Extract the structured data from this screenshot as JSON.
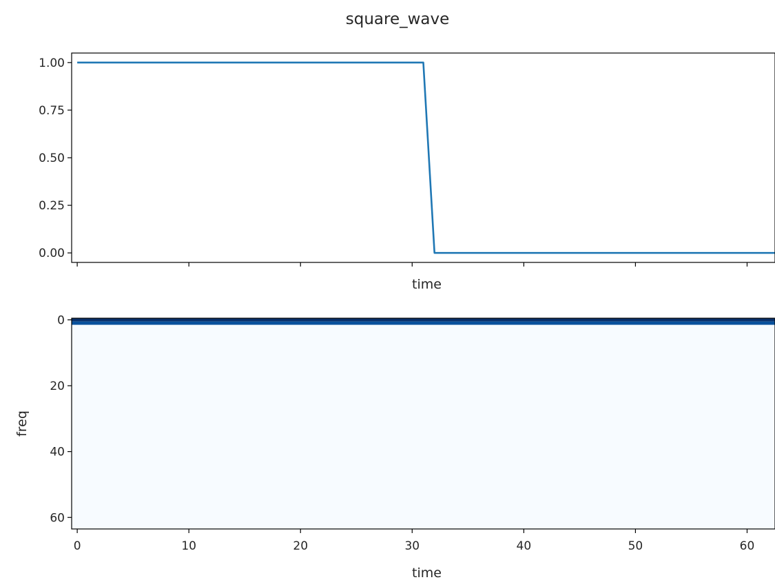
{
  "chart_data": [
    {
      "type": "line",
      "title": "square_wave",
      "xlabel": "time",
      "ylabel": "",
      "xlim": [
        -0.5,
        62.5
      ],
      "ylim": [
        -0.05,
        1.05
      ],
      "yticks": [
        0.0,
        0.25,
        0.5,
        0.75,
        1.0
      ],
      "ytick_labels": [
        "0.00",
        "0.25",
        "0.50",
        "0.75",
        "1.00"
      ],
      "xticks": [
        0,
        10,
        20,
        30,
        40,
        50,
        60
      ],
      "show_xtick_labels": false,
      "grid": false,
      "series": [
        {
          "color": "#1f77b4",
          "x": [
            0,
            31,
            32,
            63
          ],
          "y": [
            1.0,
            1.0,
            0.0,
            0.0
          ]
        }
      ]
    },
    {
      "type": "heatmap",
      "xlabel": "time",
      "ylabel": "freq",
      "xlim": [
        -0.5,
        62.5
      ],
      "ylim": [
        63.5,
        -0.5
      ],
      "xticks": [
        0,
        10,
        20,
        30,
        40,
        50,
        60
      ],
      "xtick_labels": [
        "0",
        "10",
        "20",
        "30",
        "40",
        "50",
        "60"
      ],
      "yticks": [
        0,
        20,
        40,
        60
      ],
      "ytick_labels": [
        "0",
        "20",
        "40",
        "60"
      ],
      "colormap": "Blues",
      "background_color": "#f7fbff",
      "bands": [
        {
          "freq": 0,
          "color": "#08306b"
        },
        {
          "freq": 1,
          "color": "#08519c"
        }
      ],
      "grid": false
    }
  ]
}
